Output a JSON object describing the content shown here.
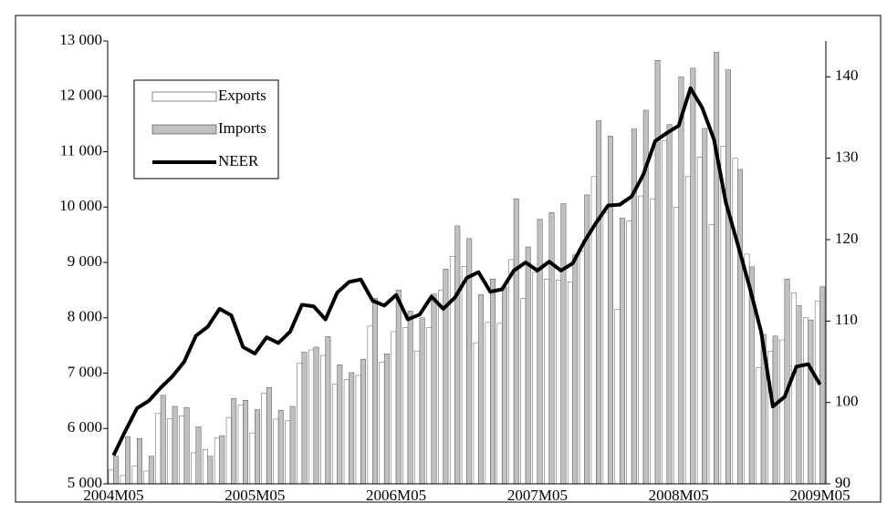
{
  "chart_data": {
    "type": "bar",
    "categories": [
      "2004M05",
      null,
      null,
      null,
      null,
      null,
      null,
      null,
      null,
      null,
      null,
      null,
      "2005M05",
      null,
      null,
      null,
      null,
      null,
      null,
      null,
      null,
      null,
      null,
      null,
      "2006M05",
      null,
      null,
      null,
      null,
      null,
      null,
      null,
      null,
      null,
      null,
      null,
      "2007M05",
      null,
      null,
      null,
      null,
      null,
      null,
      null,
      null,
      null,
      null,
      null,
      "2008M05",
      null,
      null,
      null,
      null,
      null,
      null,
      null,
      null,
      null,
      null,
      null,
      "2009M05"
    ],
    "series": [
      {
        "name": "Exports",
        "color": "#ffffff",
        "values": [
          5250,
          5150,
          5320,
          5230,
          6270,
          6180,
          6230,
          5560,
          5620,
          5830,
          6200,
          6420,
          5920,
          6640,
          6170,
          6140,
          7180,
          7420,
          7320,
          6800,
          6880,
          6960,
          7850,
          7200,
          7750,
          7820,
          7400,
          7820,
          8500,
          9110,
          8930,
          7550,
          7920,
          7900,
          9050,
          8350,
          8820,
          8700,
          8680,
          8650,
          9200,
          10550,
          9900,
          8150,
          9750,
          10200,
          10150,
          11200,
          10000,
          10550,
          10900,
          9680,
          11100,
          10880,
          9150,
          7100,
          7400,
          7600,
          8450,
          8000,
          8300
        ]
      },
      {
        "name": "Imports",
        "color": "#c0c0c0",
        "values": [
          5500,
          5850,
          5820,
          5500,
          6600,
          6400,
          6380,
          6030,
          5500,
          5870,
          6540,
          6510,
          6340,
          6740,
          6330,
          6400,
          7380,
          7470,
          7660,
          7150,
          7010,
          7250,
          8350,
          7350,
          8500,
          8120,
          8000,
          8430,
          8880,
          9660,
          9430,
          8420,
          8700,
          8550,
          10150,
          9280,
          9780,
          9900,
          10060,
          9140,
          10220,
          11560,
          11280,
          9800,
          11410,
          11750,
          12650,
          11490,
          12350,
          12510,
          11420,
          12800,
          12480,
          10680,
          8920,
          7700,
          7670,
          8700,
          8220,
          7960,
          8560
        ]
      },
      {
        "name": "NEER",
        "type": "line",
        "axis": "y2",
        "color": "#000000",
        "values": [
          93.5,
          96.5,
          99.3,
          100.2,
          101.8,
          103.2,
          105,
          108.2,
          109.3,
          111.5,
          110.7,
          106.8,
          106.0,
          108.0,
          107.3,
          108.7,
          112,
          111.8,
          110.2,
          113.5,
          114.8,
          115.1,
          112.5,
          111.9,
          113.2,
          110.2,
          110.8,
          113.0,
          111.5,
          112.9,
          115.3,
          116.0,
          113.6,
          113.9,
          116.2,
          117.2,
          116.2,
          117.3,
          116.2,
          117.1,
          119.8,
          122.1,
          124.2,
          124.3,
          125.3,
          128.0,
          132.1,
          133.1,
          134.0,
          138.6,
          136.2,
          132.3,
          124.6,
          119.5,
          114.3,
          108.7,
          99.5,
          100.7,
          104.4,
          104.7,
          102.2
        ]
      }
    ],
    "ylim": [
      5000,
      13000
    ],
    "yticks": [
      {
        "value": 5000,
        "label": "5 000"
      },
      {
        "value": 6000,
        "label": "6 000"
      },
      {
        "value": 7000,
        "label": "7 000"
      },
      {
        "value": 8000,
        "label": "8 000"
      },
      {
        "value": 9000,
        "label": "9 000"
      },
      {
        "value": 10000,
        "label": "10 000"
      },
      {
        "value": 11000,
        "label": "11 000"
      },
      {
        "value": 12000,
        "label": "12 000"
      },
      {
        "value": 13000,
        "label": "13 000"
      }
    ],
    "y2lim": [
      90,
      144.4
    ],
    "y2ticks": [
      90,
      100,
      110,
      120,
      130,
      140
    ],
    "legend": "upper left"
  }
}
